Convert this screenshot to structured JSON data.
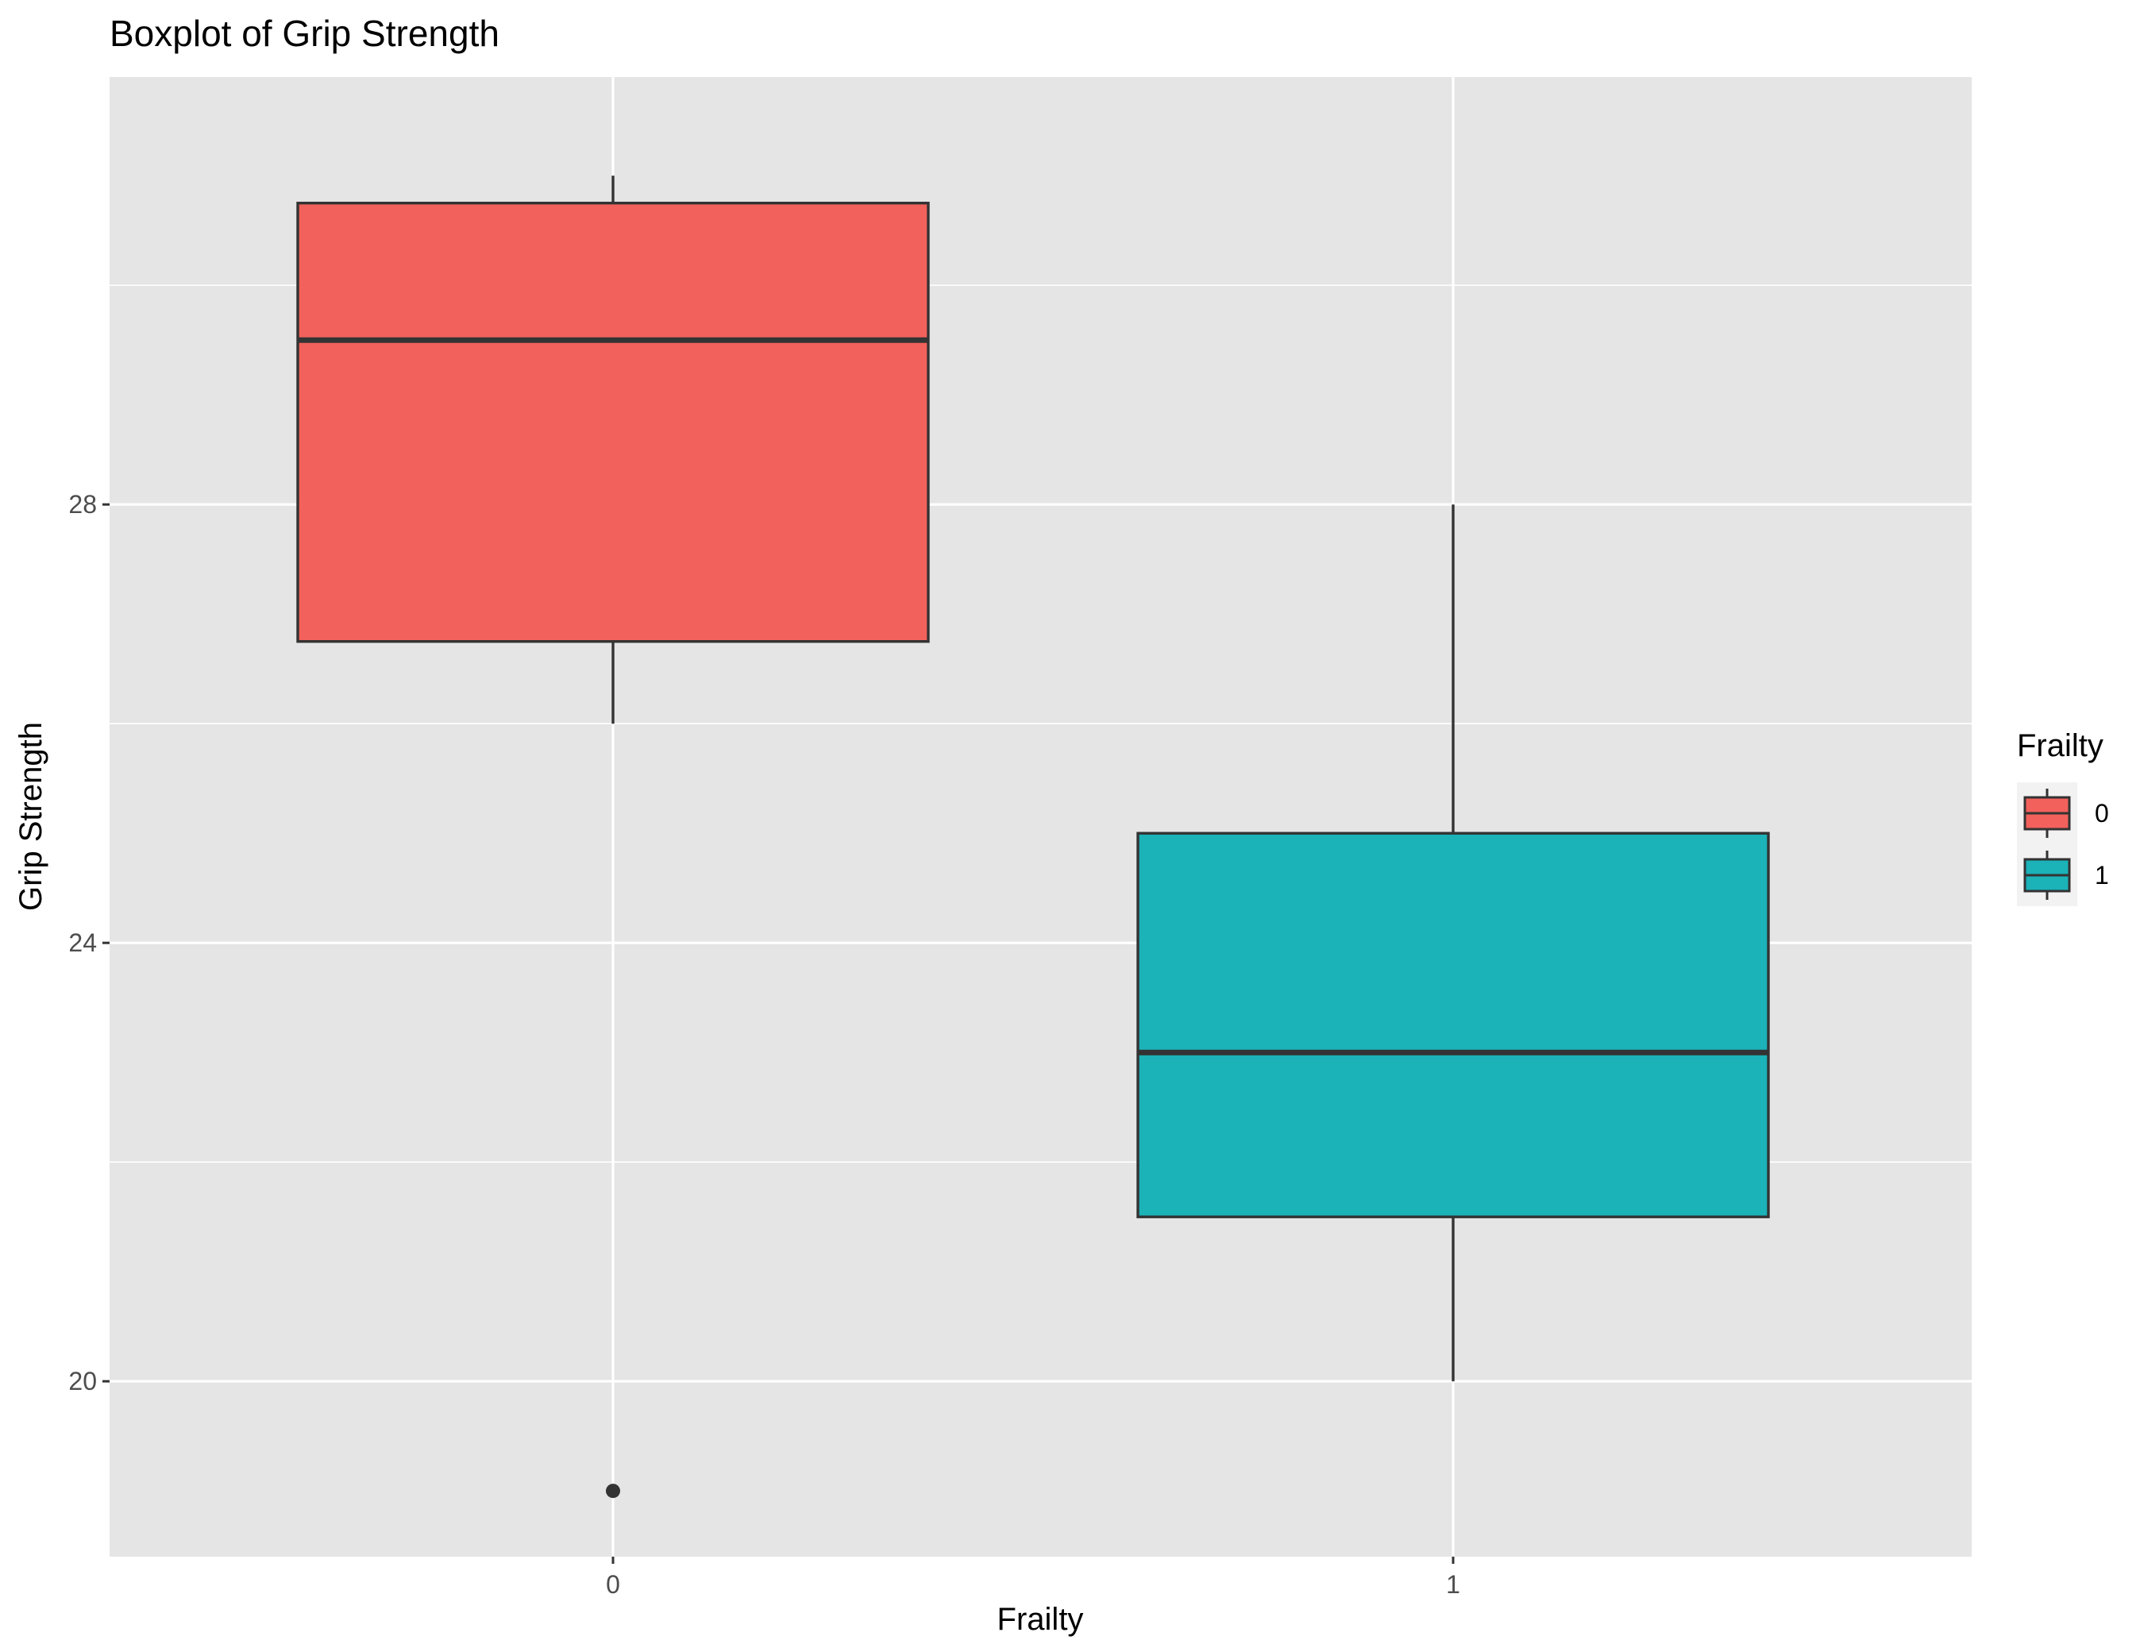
{
  "chart_data": {
    "type": "boxplot",
    "title": "Boxplot of Grip Strength",
    "xlabel": "Frailty",
    "ylabel": "Grip Strength",
    "categories": [
      "0",
      "1"
    ],
    "ylim": [
      18.4,
      31.9
    ],
    "yticks": [
      20,
      24,
      28
    ],
    "ytick_labels": [
      "20",
      "24",
      "28"
    ],
    "grid": true,
    "legend": {
      "title": "Frailty",
      "placement": "right",
      "entries": [
        {
          "label": "0",
          "color": "#F2615B"
        },
        {
          "label": "1",
          "color": "#1BB2B8"
        }
      ]
    },
    "boxes": [
      {
        "category": "0",
        "whisker_low": 26.0,
        "q1": 26.75,
        "median": 29.5,
        "q3": 30.75,
        "whisker_high": 31.0,
        "outliers": [
          19.0
        ],
        "color": "#F2615B"
      },
      {
        "category": "1",
        "whisker_low": 20.0,
        "q1": 21.5,
        "median": 23.0,
        "q3": 25.0,
        "whisker_high": 28.0,
        "outliers": [],
        "color": "#1BB2B8"
      }
    ]
  },
  "colors": {
    "panel_background": "#E5E5E5",
    "grid_major": "#FFFFFF",
    "box_outline": "#333333"
  }
}
